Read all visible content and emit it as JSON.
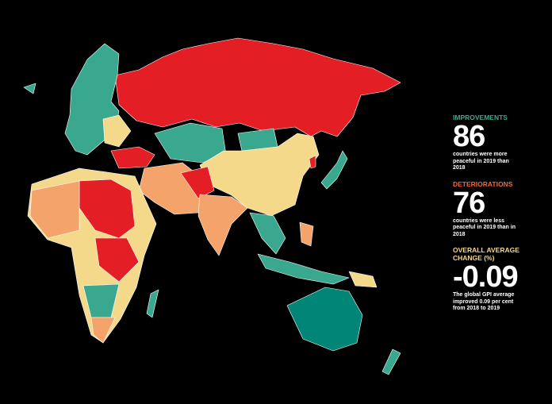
{
  "stats": [
    {
      "heading": "IMPROVEMENTS",
      "number": "86",
      "description": "countries were more peaceful in 2019 than 2018"
    },
    {
      "heading": "DETERIORATIONS",
      "number": "76",
      "description": "countries were less peaceful in 2019 than in 2018"
    },
    {
      "heading": "OVERALL AVERAGE CHANGE (%)",
      "number": "-0.09",
      "description": "The global GPI average improved 0.09 per cent from 2018 to 2019"
    }
  ]
}
